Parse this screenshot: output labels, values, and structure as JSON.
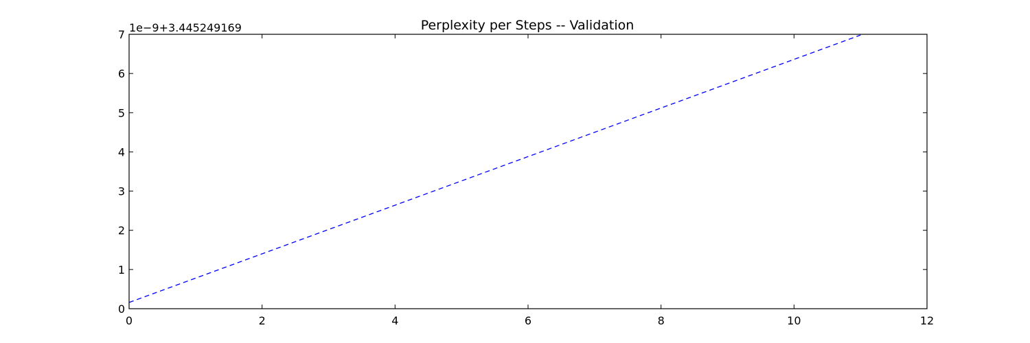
{
  "chart_data": {
    "type": "line",
    "title": "Perplexity per Steps -- Validation",
    "xlabel": "",
    "ylabel": "",
    "y_offset_label": "1e−9+3.445249169",
    "xlim": [
      0,
      12
    ],
    "ylim": [
      0,
      7
    ],
    "x_ticks": [
      0,
      2,
      4,
      6,
      8,
      10,
      12
    ],
    "y_ticks": [
      0,
      1,
      2,
      3,
      4,
      5,
      6,
      7
    ],
    "x_tick_labels": [
      "0",
      "2",
      "4",
      "6",
      "8",
      "10",
      "12"
    ],
    "y_tick_labels": [
      "0",
      "1",
      "2",
      "3",
      "4",
      "5",
      "6",
      "7"
    ],
    "grid": false,
    "series": [
      {
        "line_style": "dashed",
        "color": "#0000ff",
        "x": [
          0,
          1,
          2,
          3,
          4,
          5,
          6,
          7,
          8,
          9,
          10,
          11
        ],
        "y": [
          0.16,
          0.78,
          1.4,
          2.02,
          2.64,
          3.26,
          3.88,
          4.5,
          5.12,
          5.74,
          6.36,
          6.98
        ]
      }
    ]
  }
}
